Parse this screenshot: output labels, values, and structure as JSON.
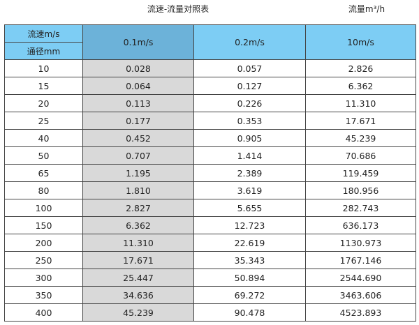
{
  "title": "流速-流量对照表",
  "unit_label": "流量m³/h",
  "header": {
    "velocity_label": "流速m/s",
    "diameter_label": "通径mm",
    "columns": [
      "0.1m/s",
      "0.2m/s",
      "10m/s"
    ]
  },
  "rows": [
    {
      "dn": "10",
      "v": [
        "0.028",
        "0.057",
        "2.826"
      ]
    },
    {
      "dn": "15",
      "v": [
        "0.064",
        "0.127",
        "6.362"
      ]
    },
    {
      "dn": "20",
      "v": [
        "0.113",
        "0.226",
        "11.310"
      ]
    },
    {
      "dn": "25",
      "v": [
        "0.177",
        "0.353",
        "17.671"
      ]
    },
    {
      "dn": "40",
      "v": [
        "0.452",
        "0.905",
        "45.239"
      ]
    },
    {
      "dn": "50",
      "v": [
        "0.707",
        "1.414",
        "70.686"
      ]
    },
    {
      "dn": "65",
      "v": [
        "1.195",
        "2.389",
        "119.459"
      ]
    },
    {
      "dn": "80",
      "v": [
        "1.810",
        "3.619",
        "180.956"
      ]
    },
    {
      "dn": "100",
      "v": [
        "2.827",
        "5.655",
        "282.743"
      ]
    },
    {
      "dn": "150",
      "v": [
        "6.362",
        "12.723",
        "636.173"
      ]
    },
    {
      "dn": "200",
      "v": [
        "11.310",
        "22.619",
        "1130.973"
      ]
    },
    {
      "dn": "250",
      "v": [
        "17.671",
        "35.343",
        "1767.146"
      ]
    },
    {
      "dn": "300",
      "v": [
        "25.447",
        "50.894",
        "2544.690"
      ]
    },
    {
      "dn": "350",
      "v": [
        "34.636",
        "69.272",
        "3463.606"
      ]
    },
    {
      "dn": "400",
      "v": [
        "45.239",
        "90.478",
        "4523.893"
      ]
    }
  ]
}
